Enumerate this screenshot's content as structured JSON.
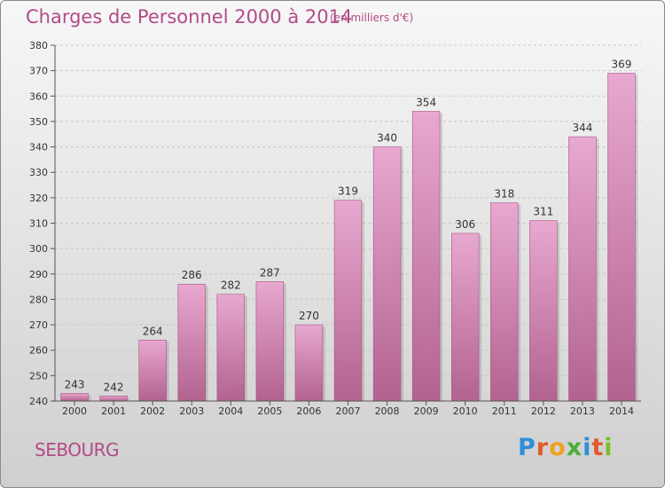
{
  "title": "Charges de Personnel 2000 à 2014",
  "subtitle": "(en milliers d'€)",
  "place": "SEBOURG",
  "brand": {
    "text": "Proxiti",
    "colors": [
      "#2f8fd8",
      "#e05a2b",
      "#f0a020",
      "#4cae3a",
      "#2f8fd8",
      "#e05a2b",
      "#7cbe2a"
    ]
  },
  "colors": {
    "bar_top": "#e8a8d0",
    "bar_bottom": "#b2638f",
    "text_accent": "#b24b86"
  },
  "chart_data": {
    "type": "bar",
    "categories": [
      "2000",
      "2001",
      "2002",
      "2003",
      "2004",
      "2005",
      "2006",
      "2007",
      "2008",
      "2009",
      "2010",
      "2011",
      "2012",
      "2013",
      "2014"
    ],
    "values": [
      243,
      242,
      264,
      286,
      282,
      287,
      270,
      319,
      340,
      354,
      306,
      318,
      311,
      344,
      369
    ],
    "ylim": [
      240,
      380
    ],
    "yticks": [
      240,
      250,
      260,
      270,
      280,
      290,
      300,
      310,
      320,
      330,
      340,
      350,
      360,
      370,
      380
    ],
    "grid": true,
    "title": "Charges de Personnel 2000 à 2014",
    "xlabel": "",
    "ylabel": ""
  }
}
